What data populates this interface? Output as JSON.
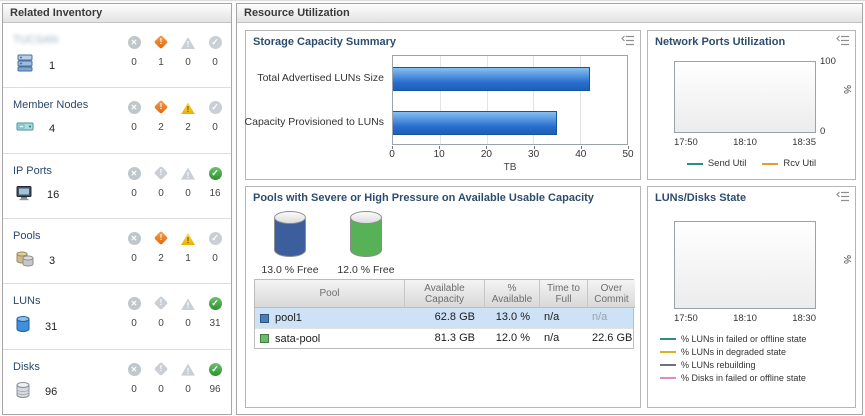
{
  "headers": {
    "left": "Related Inventory",
    "right": "Resource Utilization"
  },
  "inventory": {
    "status_columns": [
      "error",
      "critical",
      "warning",
      "normal"
    ],
    "rows": [
      {
        "name": "TUCSAN",
        "icon": "system-icon",
        "count": "1",
        "statuses": [
          "0",
          "1",
          "0",
          "0"
        ],
        "redacted": true
      },
      {
        "name": "Member Nodes",
        "icon": "member-nodes-icon",
        "count": "4",
        "statuses": [
          "0",
          "2",
          "2",
          "0"
        ]
      },
      {
        "name": "IP Ports",
        "icon": "ip-ports-icon",
        "count": "16",
        "statuses": [
          "0",
          "0",
          "0",
          "16"
        ]
      },
      {
        "name": "Pools",
        "icon": "pools-icon",
        "count": "3",
        "statuses": [
          "0",
          "2",
          "1",
          "0"
        ]
      },
      {
        "name": "LUNs",
        "icon": "luns-icon",
        "count": "31",
        "statuses": [
          "0",
          "0",
          "0",
          "31"
        ]
      },
      {
        "name": "Disks",
        "icon": "disks-icon",
        "count": "96",
        "statuses": [
          "0",
          "0",
          "0",
          "96"
        ]
      }
    ]
  },
  "storage": {
    "title": "Storage Capacity Summary",
    "categories": [
      "Total Advertised LUNs Size",
      "Capacity Provisioned to LUNs"
    ],
    "values": [
      42,
      35
    ],
    "xlim": [
      0,
      50
    ],
    "ticks": [
      "0",
      "10",
      "20",
      "30",
      "40",
      "50"
    ],
    "xlabel": "TB",
    "bar_color": "#2a6fce"
  },
  "network": {
    "title": "Network Ports Utilization",
    "ylabel": "%",
    "y_top": "100",
    "y_bottom": "0",
    "xticks": [
      "17:50",
      "18:10",
      "18:35"
    ],
    "legend": [
      {
        "label": "Send Util",
        "color": "#2e8b8b"
      },
      {
        "label": "Rcv Util",
        "color": "#dfa028"
      }
    ]
  },
  "pools": {
    "title": "Pools with Severe or High Pressure on Available Usable Capacity",
    "gauges": [
      {
        "label": "13.0 % Free",
        "color": "#3c5e9c",
        "fill_pct": 87
      },
      {
        "label": "12.0 % Free",
        "color": "#57b257",
        "fill_pct": 88
      }
    ],
    "table": {
      "headers": [
        "Pool",
        "Available Capacity",
        "% Available",
        "Time to Full",
        "Over Commit"
      ],
      "rows": [
        {
          "pool": "pool1",
          "swatch": "#4a7ebb",
          "available_capacity": "62.8 GB",
          "pct_available": "13.0 %",
          "time_to_full": "n/a",
          "over_commit": "n/a"
        },
        {
          "pool": "sata-pool",
          "swatch": "#68bd68",
          "available_capacity": "81.3 GB",
          "pct_available": "12.0 %",
          "time_to_full": "n/a",
          "over_commit": "22.6 GB"
        }
      ]
    }
  },
  "luns_disks": {
    "title": "LUNs/Disks State",
    "ylabel": "%",
    "xticks": [
      "17:50",
      "18:10",
      "18:30"
    ],
    "legend": [
      {
        "label": "% LUNs in failed or offline state",
        "color": "#2e8b8b"
      },
      {
        "label": "% LUNs in degraded state",
        "color": "#d9b02a"
      },
      {
        "label": "% LUNs rebuilding",
        "color": "#6e6e80"
      },
      {
        "label": "% Disks in failed or offline state",
        "color": "#d98cc8"
      }
    ]
  },
  "chart_data": [
    {
      "type": "bar",
      "orientation": "horizontal",
      "title": "Storage Capacity Summary",
      "categories": [
        "Total Advertised LUNs Size",
        "Capacity Provisioned to LUNs"
      ],
      "values": [
        42,
        35
      ],
      "xlabel": "TB",
      "xlim": [
        0,
        50
      ],
      "grid": true,
      "legend_position": "none"
    },
    {
      "type": "line",
      "title": "Network Ports Utilization",
      "ylabel": "%",
      "ylim": [
        0,
        100
      ],
      "x": [
        "17:50",
        "18:10",
        "18:35"
      ],
      "series": [
        {
          "name": "Send Util",
          "values": []
        },
        {
          "name": "Rcv Util",
          "values": []
        }
      ],
      "legend_position": "bottom"
    },
    {
      "type": "line",
      "title": "LUNs/Disks State",
      "ylabel": "%",
      "x": [
        "17:50",
        "18:10",
        "18:30"
      ],
      "series": [
        {
          "name": "% LUNs in failed or offline state",
          "values": []
        },
        {
          "name": "% LUNs in degraded state",
          "values": []
        },
        {
          "name": "% LUNs rebuilding",
          "values": []
        },
        {
          "name": "% Disks in failed or offline state",
          "values": []
        }
      ],
      "legend_position": "bottom"
    }
  ]
}
